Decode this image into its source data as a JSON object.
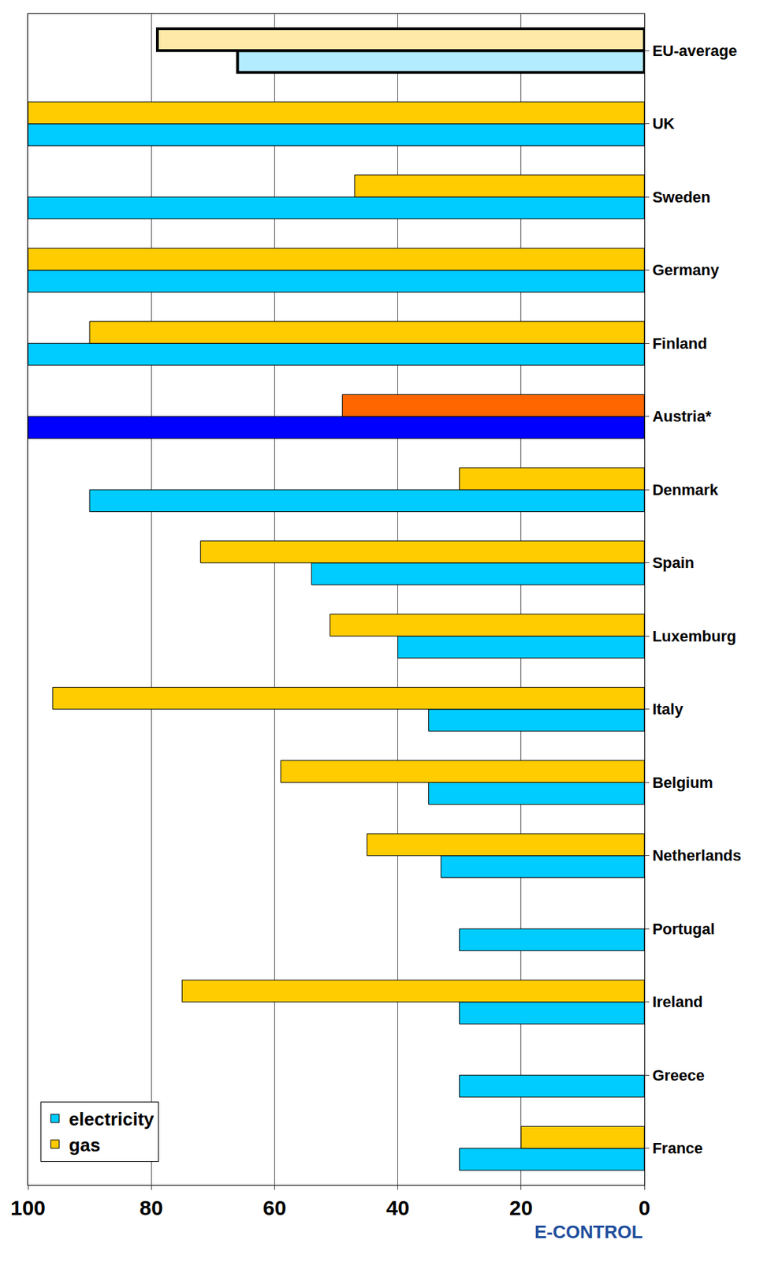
{
  "chart_data": {
    "type": "bar",
    "orientation": "horizontal",
    "categories": [
      "France",
      "Greece",
      "Ireland",
      "Portugal",
      "Netherlands",
      "Belgium",
      "Italy",
      "Luxemburg",
      "Spain",
      "Denmark",
      "Austria*",
      "Finland",
      "Germany",
      "Sweden",
      "UK",
      "EU-average"
    ],
    "series": [
      {
        "name": "electricity",
        "color": "#00ccff",
        "colors": [
          "#00ccff",
          "#00ccff",
          "#00ccff",
          "#00ccff",
          "#00ccff",
          "#00ccff",
          "#00ccff",
          "#00ccff",
          "#00ccff",
          "#00ccff",
          "#0000ff",
          "#00ccff",
          "#00ccff",
          "#00ccff",
          "#00ccff",
          "#b3ecff"
        ],
        "values": [
          30,
          30,
          30,
          30,
          33,
          35,
          35,
          40,
          54,
          90,
          100,
          100,
          100,
          100,
          100,
          66
        ]
      },
      {
        "name": "gas",
        "color": "#ffcc00",
        "colors": [
          "#ffcc00",
          "#ffcc00",
          "#ffcc00",
          "#ffcc00",
          "#ffcc00",
          "#ffcc00",
          "#ffcc00",
          "#ffcc00",
          "#ffcc00",
          "#ffcc00",
          "#ff6600",
          "#ffcc00",
          "#ffcc00",
          "#ffcc00",
          "#ffcc00",
          "#ffe9a8"
        ],
        "values": [
          20,
          null,
          75,
          null,
          45,
          59,
          96,
          51,
          72,
          30,
          49,
          90,
          100,
          47,
          100,
          79
        ]
      }
    ],
    "xlim": [
      100,
      0
    ],
    "xticks": [
      0,
      20,
      40,
      60,
      80,
      100
    ],
    "grid": true,
    "legend": "lower left",
    "annotations": [
      "E-CONTROL"
    ]
  }
}
